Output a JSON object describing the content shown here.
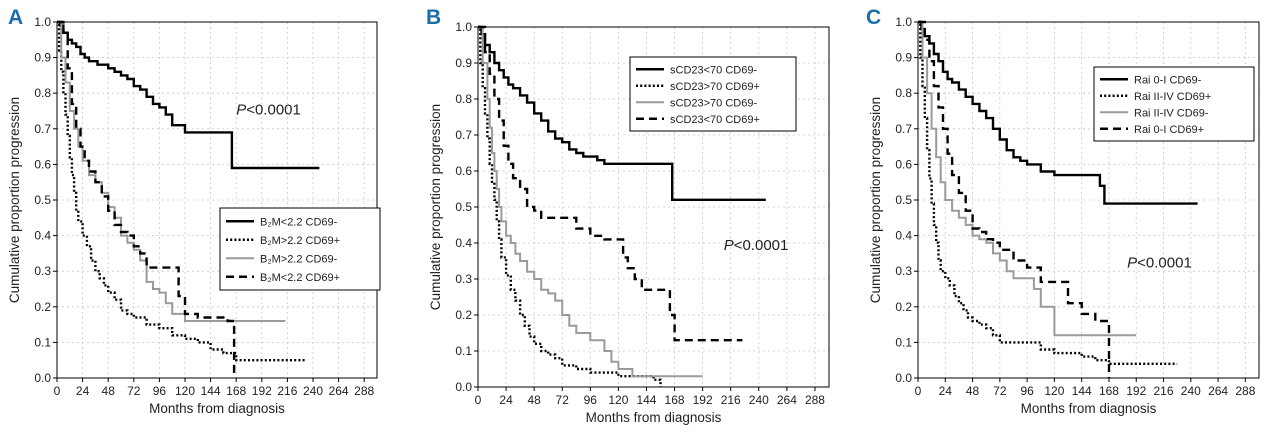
{
  "chart_data": [
    {
      "type": "line",
      "panel_label": "A",
      "title": "",
      "xlabel": "Months from diagnosis",
      "ylabel": "Cumulative proportion progression",
      "xlim": [
        0,
        300
      ],
      "ylim": [
        0,
        1.0
      ],
      "xticks": [
        "0",
        "24",
        "48",
        "72",
        "96",
        "120",
        "144",
        "168",
        "192",
        "216",
        "240",
        "264",
        "288"
      ],
      "yticks": [
        "0.0",
        "0.1",
        "0.2",
        "0.3",
        "0.4",
        "0.5",
        "0.6",
        "0.7",
        "0.8",
        "0.9",
        "1.0"
      ],
      "annotation": {
        "italic": "P",
        "rest": "<0.0001",
        "x": 168,
        "y": 0.74
      },
      "legend": {
        "position": "center-right"
      },
      "series": [
        {
          "name": "B₂M<2.2 CD69-",
          "style": "solid-black",
          "x": [
            0,
            3,
            6,
            10,
            14,
            18,
            22,
            26,
            30,
            34,
            38,
            42,
            48,
            54,
            60,
            66,
            72,
            78,
            84,
            90,
            96,
            102,
            108,
            120,
            150,
            162,
            164,
            246
          ],
          "y": [
            1.0,
            0.99,
            0.97,
            0.95,
            0.94,
            0.93,
            0.91,
            0.9,
            0.89,
            0.89,
            0.88,
            0.88,
            0.87,
            0.86,
            0.85,
            0.84,
            0.82,
            0.81,
            0.79,
            0.77,
            0.76,
            0.74,
            0.71,
            0.69,
            0.69,
            0.69,
            0.59,
            0.59
          ]
        },
        {
          "name": "B₂M>2.2 CD69+",
          "style": "dotted-black",
          "x": [
            0,
            2,
            4,
            6,
            8,
            10,
            12,
            14,
            16,
            18,
            20,
            24,
            28,
            32,
            36,
            40,
            44,
            48,
            54,
            60,
            66,
            72,
            84,
            96,
            108,
            120,
            132,
            144,
            156,
            168,
            200,
            234
          ],
          "y": [
            1.0,
            0.92,
            0.86,
            0.8,
            0.74,
            0.68,
            0.62,
            0.57,
            0.52,
            0.47,
            0.44,
            0.4,
            0.37,
            0.33,
            0.3,
            0.28,
            0.26,
            0.24,
            0.22,
            0.19,
            0.18,
            0.17,
            0.15,
            0.14,
            0.12,
            0.11,
            0.1,
            0.08,
            0.07,
            0.05,
            0.05,
            0.05
          ]
        },
        {
          "name": "B₂M>2.2 CD69-",
          "style": "solid-gray",
          "x": [
            0,
            4,
            8,
            12,
            16,
            20,
            24,
            30,
            36,
            42,
            48,
            54,
            60,
            66,
            72,
            78,
            84,
            90,
            96,
            102,
            108,
            120,
            130,
            144,
            168,
            214
          ],
          "y": [
            1.0,
            0.9,
            0.83,
            0.75,
            0.7,
            0.65,
            0.61,
            0.57,
            0.55,
            0.52,
            0.48,
            0.45,
            0.4,
            0.38,
            0.36,
            0.33,
            0.27,
            0.25,
            0.24,
            0.21,
            0.18,
            0.16,
            0.16,
            0.16,
            0.16,
            0.16
          ]
        },
        {
          "name": "B₂M<2.2 CD69+",
          "style": "dashed-black",
          "x": [
            0,
            6,
            10,
            14,
            18,
            22,
            26,
            30,
            36,
            42,
            48,
            54,
            60,
            66,
            72,
            78,
            84,
            96,
            108,
            114,
            120,
            132,
            144,
            156,
            160,
            164,
            166
          ],
          "y": [
            1.0,
            0.97,
            0.87,
            0.77,
            0.7,
            0.65,
            0.61,
            0.58,
            0.55,
            0.51,
            0.47,
            0.43,
            0.41,
            0.4,
            0.37,
            0.35,
            0.31,
            0.31,
            0.31,
            0.23,
            0.18,
            0.17,
            0.17,
            0.17,
            0.16,
            0.16,
            0.0
          ]
        }
      ]
    },
    {
      "type": "line",
      "panel_label": "B",
      "title": "",
      "xlabel": "Months from diagnosis",
      "ylabel": "Cumulative proportion progression",
      "xlim": [
        0,
        300
      ],
      "ylim": [
        0,
        1.0
      ],
      "xticks": [
        "0",
        "24",
        "48",
        "72",
        "96",
        "120",
        "144",
        "168",
        "192",
        "216",
        "240",
        "264",
        "288"
      ],
      "yticks": [
        "0.0",
        "0.1",
        "0.2",
        "0.3",
        "0.4",
        "0.5",
        "0.6",
        "0.7",
        "0.8",
        "0.9",
        "1.0"
      ],
      "annotation": {
        "italic": "P",
        "rest": "<0.0001",
        "x": 210,
        "y": 0.38
      },
      "legend": {
        "position": "top-right"
      },
      "series": [
        {
          "name": "sCD23<70 CD69-",
          "style": "solid-black",
          "x": [
            0,
            3,
            6,
            10,
            14,
            18,
            22,
            26,
            30,
            36,
            42,
            48,
            54,
            60,
            66,
            72,
            78,
            84,
            90,
            96,
            102,
            108,
            120,
            144,
            164,
            166,
            246
          ],
          "y": [
            1.0,
            0.98,
            0.95,
            0.93,
            0.9,
            0.88,
            0.86,
            0.84,
            0.83,
            0.81,
            0.79,
            0.76,
            0.74,
            0.71,
            0.69,
            0.68,
            0.66,
            0.65,
            0.64,
            0.64,
            0.63,
            0.62,
            0.62,
            0.62,
            0.62,
            0.52,
            0.52
          ]
        },
        {
          "name": "sCD23>70 CD69+",
          "style": "dotted-black",
          "x": [
            0,
            2,
            4,
            6,
            8,
            10,
            12,
            14,
            16,
            18,
            20,
            24,
            28,
            32,
            36,
            40,
            44,
            48,
            54,
            60,
            66,
            72,
            84,
            96,
            120,
            150,
            156
          ],
          "y": [
            1.0,
            0.9,
            0.83,
            0.76,
            0.69,
            0.62,
            0.57,
            0.52,
            0.46,
            0.41,
            0.36,
            0.31,
            0.27,
            0.24,
            0.2,
            0.17,
            0.14,
            0.12,
            0.1,
            0.09,
            0.08,
            0.06,
            0.05,
            0.04,
            0.03,
            0.02,
            0.0
          ]
        },
        {
          "name": "sCD23>70 CD69-",
          "style": "solid-gray",
          "x": [
            0,
            4,
            8,
            10,
            12,
            14,
            16,
            18,
            20,
            24,
            28,
            32,
            36,
            42,
            48,
            54,
            60,
            66,
            72,
            78,
            84,
            96,
            108,
            114,
            120,
            132,
            156,
            192
          ],
          "y": [
            1.0,
            0.9,
            0.8,
            0.72,
            0.65,
            0.6,
            0.55,
            0.5,
            0.46,
            0.42,
            0.4,
            0.37,
            0.35,
            0.32,
            0.3,
            0.27,
            0.26,
            0.24,
            0.2,
            0.17,
            0.15,
            0.13,
            0.1,
            0.07,
            0.05,
            0.03,
            0.03,
            0.03
          ]
        },
        {
          "name": "sCD23<70 CD69+",
          "style": "dashed-black",
          "x": [
            0,
            6,
            10,
            14,
            18,
            22,
            26,
            30,
            36,
            42,
            48,
            54,
            60,
            72,
            84,
            96,
            108,
            120,
            124,
            128,
            134,
            140,
            150,
            160,
            164,
            168,
            226
          ],
          "y": [
            1.0,
            0.93,
            0.87,
            0.8,
            0.74,
            0.67,
            0.62,
            0.58,
            0.55,
            0.5,
            0.49,
            0.47,
            0.47,
            0.47,
            0.44,
            0.42,
            0.41,
            0.41,
            0.36,
            0.33,
            0.3,
            0.27,
            0.27,
            0.27,
            0.2,
            0.13,
            0.13
          ]
        }
      ]
    },
    {
      "type": "line",
      "panel_label": "C",
      "title": "",
      "xlabel": "Months from diagnosis",
      "ylabel": "Cumulative proportion progression",
      "xlim": [
        0,
        300
      ],
      "ylim": [
        0,
        1.0
      ],
      "xticks": [
        "0",
        "24",
        "48",
        "72",
        "96",
        "120",
        "144",
        "168",
        "192",
        "216",
        "240",
        "264",
        "288"
      ],
      "yticks": [
        "0.0",
        "0.1",
        "0.2",
        "0.3",
        "0.4",
        "0.5",
        "0.6",
        "0.7",
        "0.8",
        "0.9",
        "1.0"
      ],
      "annotation": {
        "italic": "P",
        "rest": "<0.0001",
        "x": 184,
        "y": 0.31
      },
      "legend": {
        "position": "top-right"
      },
      "series": [
        {
          "name": "Rai 0-I CD69-",
          "style": "solid-black",
          "x": [
            0,
            3,
            6,
            10,
            14,
            18,
            22,
            26,
            30,
            36,
            42,
            48,
            54,
            60,
            66,
            72,
            78,
            84,
            90,
            96,
            108,
            120,
            144,
            160,
            164,
            246
          ],
          "y": [
            1.0,
            0.98,
            0.96,
            0.94,
            0.91,
            0.89,
            0.86,
            0.84,
            0.83,
            0.81,
            0.79,
            0.77,
            0.75,
            0.73,
            0.7,
            0.67,
            0.64,
            0.62,
            0.61,
            0.6,
            0.58,
            0.57,
            0.57,
            0.54,
            0.49,
            0.49
          ]
        },
        {
          "name": "Rai II-IV CD69+",
          "style": "dotted-black",
          "x": [
            0,
            2,
            4,
            6,
            8,
            10,
            12,
            14,
            16,
            18,
            20,
            24,
            28,
            32,
            36,
            40,
            44,
            48,
            54,
            60,
            66,
            72,
            90,
            108,
            120,
            144,
            156,
            168,
            228
          ],
          "y": [
            1.0,
            0.9,
            0.82,
            0.73,
            0.64,
            0.56,
            0.49,
            0.43,
            0.38,
            0.33,
            0.3,
            0.28,
            0.26,
            0.23,
            0.21,
            0.19,
            0.17,
            0.16,
            0.15,
            0.14,
            0.12,
            0.1,
            0.1,
            0.08,
            0.07,
            0.06,
            0.05,
            0.04,
            0.04
          ]
        },
        {
          "name": "Rai II-IV CD69-",
          "style": "solid-gray",
          "x": [
            0,
            4,
            8,
            12,
            16,
            20,
            24,
            30,
            36,
            42,
            48,
            54,
            60,
            66,
            72,
            78,
            84,
            96,
            102,
            108,
            120,
            144,
            192
          ],
          "y": [
            1.0,
            0.9,
            0.8,
            0.7,
            0.62,
            0.55,
            0.5,
            0.47,
            0.45,
            0.43,
            0.4,
            0.39,
            0.38,
            0.35,
            0.33,
            0.3,
            0.28,
            0.28,
            0.25,
            0.2,
            0.12,
            0.12,
            0.12
          ]
        },
        {
          "name": "Rai 0-I CD69+",
          "style": "dashed-black",
          "x": [
            0,
            6,
            10,
            14,
            18,
            22,
            26,
            30,
            36,
            42,
            48,
            54,
            60,
            66,
            72,
            84,
            96,
            108,
            120,
            132,
            144,
            156,
            166,
            168
          ],
          "y": [
            1.0,
            0.95,
            0.89,
            0.82,
            0.76,
            0.7,
            0.63,
            0.57,
            0.52,
            0.47,
            0.42,
            0.41,
            0.39,
            0.38,
            0.36,
            0.33,
            0.31,
            0.27,
            0.27,
            0.21,
            0.18,
            0.16,
            0.16,
            0.0
          ]
        }
      ]
    }
  ]
}
